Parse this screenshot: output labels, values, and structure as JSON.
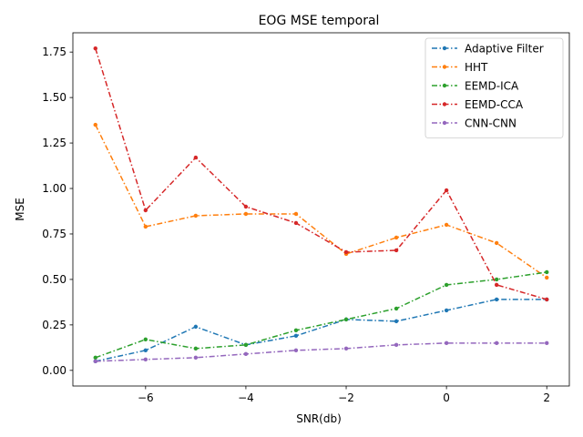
{
  "chart_data": {
    "type": "line",
    "title": "EOG MSE temporal",
    "xlabel": "SNR(db)",
    "ylabel": "MSE",
    "x": [
      -7,
      -6,
      -5,
      -4,
      -3,
      -2,
      -1,
      0,
      1,
      2
    ],
    "xlim": [
      -7.45,
      2.45
    ],
    "ylim": [
      -0.086,
      1.856
    ],
    "xticks": [
      -6,
      -4,
      -2,
      0,
      2
    ],
    "xtick_labels": [
      "−6",
      "−4",
      "−2",
      "0",
      "2"
    ],
    "yticks": [
      0.0,
      0.25,
      0.5,
      0.75,
      1.0,
      1.25,
      1.5,
      1.75
    ],
    "ytick_labels": [
      "0.00",
      "0.25",
      "0.50",
      "0.75",
      "1.00",
      "1.25",
      "1.50",
      "1.75"
    ],
    "grid": false,
    "legend_position": "top-right",
    "series": [
      {
        "name": "Adaptive Filter",
        "color": "#1f77b4",
        "values": [
          0.05,
          0.11,
          0.24,
          0.14,
          0.19,
          0.28,
          0.27,
          0.33,
          0.39,
          0.39
        ]
      },
      {
        "name": "HHT",
        "color": "#ff7f0e",
        "values": [
          1.35,
          0.79,
          0.85,
          0.86,
          0.86,
          0.64,
          0.73,
          0.8,
          0.7,
          0.51
        ]
      },
      {
        "name": "EEMD-ICA",
        "color": "#2ca02c",
        "values": [
          0.07,
          0.17,
          0.12,
          0.14,
          0.22,
          0.28,
          0.34,
          0.47,
          0.5,
          0.54
        ]
      },
      {
        "name": "EEMD-CCA",
        "color": "#d62728",
        "values": [
          1.77,
          0.88,
          1.17,
          0.9,
          0.81,
          0.65,
          0.66,
          0.99,
          0.47,
          0.39
        ]
      },
      {
        "name": "CNN-CNN",
        "color": "#9467bd",
        "values": [
          0.05,
          0.06,
          0.07,
          0.09,
          0.11,
          0.12,
          0.14,
          0.15,
          0.15,
          0.15
        ]
      }
    ]
  }
}
